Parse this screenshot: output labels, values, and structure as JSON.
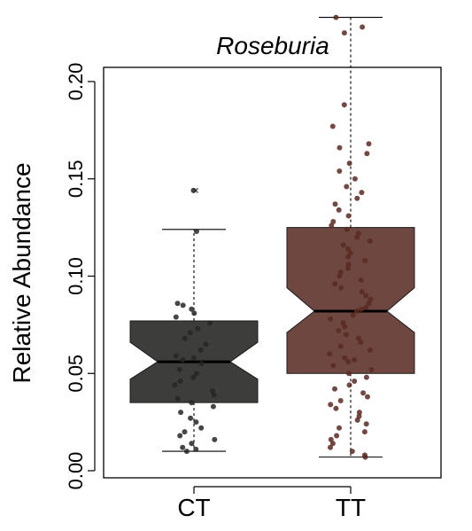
{
  "chart_data": {
    "type": "boxplot",
    "title": "Roseburia",
    "xlabel": "",
    "ylabel": "Relative Abundance",
    "ylim": [
      -0.005,
      0.236
    ],
    "yticks": [
      0.0,
      0.05,
      0.1,
      0.15,
      0.2
    ],
    "ytick_labels": [
      "0.00",
      "0.05",
      "0.10",
      "0.15",
      "0.20"
    ],
    "notched": true,
    "categories": [
      "CT",
      "TT"
    ],
    "series": [
      {
        "category": "CT",
        "color": "#3d3d3b",
        "point_color": "#262626",
        "whisker_low": 0.01,
        "q1": 0.035,
        "median": 0.056,
        "q3": 0.077,
        "whisker_high": 0.124,
        "notch_low": 0.047,
        "notch_high": 0.066,
        "outliers": [
          0.144
        ],
        "points": [
          0.144,
          0.123,
          0.086,
          0.085,
          0.083,
          0.081,
          0.079,
          0.076,
          0.073,
          0.071,
          0.068,
          0.065,
          0.062,
          0.059,
          0.058,
          0.057,
          0.055,
          0.052,
          0.05,
          0.048,
          0.046,
          0.044,
          0.041,
          0.039,
          0.037,
          0.035,
          0.033,
          0.03,
          0.027,
          0.025,
          0.022,
          0.02,
          0.018,
          0.016,
          0.014,
          0.012,
          0.011,
          0.01
        ]
      },
      {
        "category": "TT",
        "color": "#6e4840",
        "point_color": "#5a2a22",
        "whisker_low": 0.007,
        "q1": 0.05,
        "median": 0.082,
        "q3": 0.125,
        "whisker_high": 0.233,
        "notch_low": 0.071,
        "notch_high": 0.094,
        "outliers": [],
        "points": [
          0.233,
          0.228,
          0.225,
          0.188,
          0.177,
          0.168,
          0.166,
          0.163,
          0.158,
          0.154,
          0.15,
          0.146,
          0.143,
          0.14,
          0.137,
          0.134,
          0.131,
          0.128,
          0.126,
          0.124,
          0.122,
          0.12,
          0.118,
          0.116,
          0.114,
          0.112,
          0.11,
          0.108,
          0.106,
          0.104,
          0.102,
          0.1,
          0.098,
          0.096,
          0.094,
          0.092,
          0.09,
          0.088,
          0.086,
          0.084,
          0.083,
          0.082,
          0.08,
          0.078,
          0.076,
          0.074,
          0.072,
          0.07,
          0.068,
          0.066,
          0.064,
          0.062,
          0.06,
          0.058,
          0.057,
          0.056,
          0.054,
          0.052,
          0.05,
          0.048,
          0.046,
          0.044,
          0.042,
          0.04,
          0.038,
          0.036,
          0.034,
          0.032,
          0.03,
          0.028,
          0.026,
          0.024,
          0.022,
          0.02,
          0.018,
          0.016,
          0.014,
          0.012,
          0.01,
          0.008,
          0.007
        ]
      }
    ],
    "grid": false,
    "legend": "none"
  }
}
